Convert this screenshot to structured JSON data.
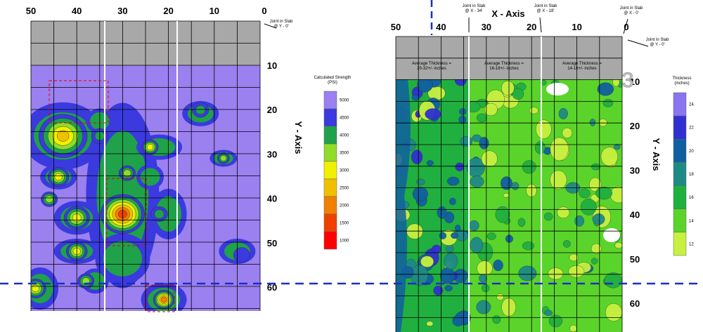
{
  "chart_data": [
    {
      "type": "heatmap",
      "title": "",
      "xlabel": "",
      "ylabel": "Y - Axis",
      "x_ticks": [
        "50",
        "40",
        "30",
        "20",
        "10",
        "0"
      ],
      "y_ticks": [
        "10",
        "20",
        "30",
        "40",
        "50",
        "60"
      ],
      "xlim": [
        50,
        0
      ],
      "ylim": [
        0,
        65
      ],
      "joint_labels": [
        {
          "text": "Joint in Slab\n@ Y - 0'",
          "x": 0,
          "y": 0
        }
      ],
      "colorbar": {
        "title": "Calculated Strength\n(PSI)",
        "levels": [
          {
            "value": "5000",
            "color": "#9b80f0"
          },
          {
            "value": "4500",
            "color": "#3a3adf"
          },
          {
            "value": "4000",
            "color": "#1fa24a"
          },
          {
            "value": "3500",
            "color": "#8fdc2a"
          },
          {
            "value": "3000",
            "color": "#f0f000"
          },
          {
            "value": "2500",
            "color": "#f0c000"
          },
          {
            "value": "2000",
            "color": "#f08000"
          },
          {
            "value": "1500",
            "color": "#f04000"
          },
          {
            "value": "1000",
            "color": "#ff0000"
          }
        ]
      },
      "weak_zones": [
        {
          "x": 43,
          "y": 19,
          "r": 5,
          "level": 2500
        },
        {
          "x": 30,
          "y": 40,
          "r": 4.5,
          "level": 1500
        },
        {
          "x": 44,
          "y": 30,
          "r": 2,
          "level": 3000
        },
        {
          "x": 40,
          "y": 41,
          "r": 2.5,
          "level": 3000
        },
        {
          "x": 40,
          "y": 50,
          "r": 2,
          "level": 3000
        },
        {
          "x": 46,
          "y": 36,
          "r": 1.5,
          "level": 3500
        },
        {
          "x": 29,
          "y": 29,
          "r": 1.5,
          "level": 3500
        },
        {
          "x": 24,
          "y": 22,
          "r": 1.5,
          "level": 3000
        },
        {
          "x": 13,
          "y": 12,
          "r": 1.5,
          "level": 4000
        },
        {
          "x": 8,
          "y": 25,
          "r": 1,
          "level": 3500
        },
        {
          "x": 21,
          "y": 63,
          "r": 2,
          "level": 2000
        },
        {
          "x": 49,
          "y": 60,
          "r": 2,
          "level": 3000
        },
        {
          "x": 22,
          "y": 40,
          "r": 1.5,
          "level": 4000
        },
        {
          "x": 4,
          "y": 51,
          "r": 1.5,
          "level": 4500
        },
        {
          "x": 35,
          "y": 19,
          "r": 1.5,
          "level": 4000
        },
        {
          "x": 38,
          "y": 58,
          "r": 1.5,
          "level": 3500
        }
      ]
    },
    {
      "type": "heatmap",
      "title": "",
      "xlabel": "X - Axis",
      "ylabel": "Y - Axis",
      "x_ticks": [
        "50",
        "40",
        "30",
        "20",
        "10",
        "0"
      ],
      "y_ticks": [
        "10",
        "20",
        "30",
        "40",
        "50",
        "60"
      ],
      "xlim": [
        50,
        0
      ],
      "ylim": [
        0,
        65
      ],
      "joint_labels": [
        {
          "text": "Joint in Slab\n@ X - 34'",
          "x": 34,
          "y": 0
        },
        {
          "text": "Joint in Slab\n@ X - 18'",
          "x": 18,
          "y": 0
        },
        {
          "text": "Joint in Slab\n@ X - 0'",
          "x": 0,
          "y": 0
        },
        {
          "text": "Joint in Slab\n@ Y - 0'",
          "x": 0,
          "y": 2
        }
      ],
      "region_labels": [
        "Average Thickness =\n20-32+/- inches",
        "Average Thickness =\n16-18+/- inches",
        "Average Thickness =\n14-16+/- inches"
      ],
      "section_marker": "3",
      "colorbar": {
        "title": "Thickness\n(inches)",
        "levels": [
          {
            "value": "24",
            "color": "#8b74f0"
          },
          {
            "value": "22",
            "color": "#3030d0"
          },
          {
            "value": "20",
            "color": "#1060a0"
          },
          {
            "value": "18",
            "color": "#1e8a86"
          },
          {
            "value": "16",
            "color": "#20b040"
          },
          {
            "value": "14",
            "color": "#5ad42a"
          },
          {
            "value": "12",
            "color": "#c8f040"
          }
        ]
      }
    }
  ]
}
